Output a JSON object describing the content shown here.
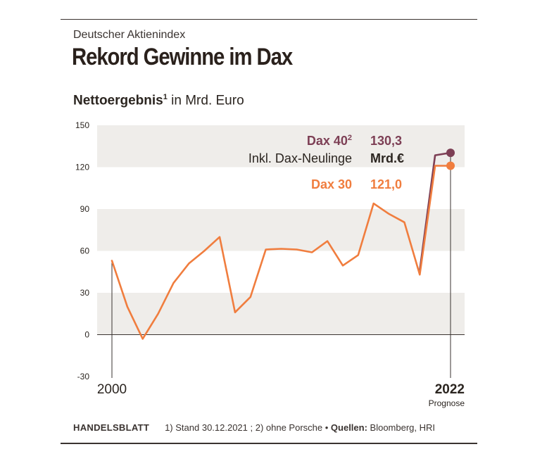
{
  "header": {
    "kicker": "Deutscher Aktienindex",
    "title": "Rekord Gewinne im Dax",
    "subtitle_bold": "Nettoergebnis",
    "subtitle_sup": "1",
    "subtitle_rest": " in Mrd. Euro"
  },
  "legend": {
    "dax40_label": "Dax 40",
    "dax40_sup": "2",
    "dax40_value": "130,3",
    "dax40_sub_label": "Inkl. Dax-Neulinge",
    "dax40_unit": "Mrd.€",
    "dax30_label": "Dax 30",
    "dax30_value": "121,0"
  },
  "footer": {
    "brand": "HANDELSBLATT",
    "notes": "1) Stand 30.12.2021 ;  2) ohne Porsche • ",
    "sources_label": "Quellen:",
    "sources": " Bloomberg, HRI"
  },
  "colors": {
    "dax30": "#f07d3e",
    "dax40": "#7d3f55",
    "band": "#efedea",
    "axis": "#3a3330",
    "text": "#2b2520"
  },
  "chart_data": {
    "type": "line",
    "ylabel": "",
    "xlabel": "",
    "ylim": [
      -30,
      150
    ],
    "yticks": [
      -30,
      0,
      30,
      60,
      90,
      120,
      150
    ],
    "x_labels": [
      {
        "x": 2000,
        "label": "2000",
        "bold": false,
        "sub": ""
      },
      {
        "x": 2022,
        "label": "2022",
        "bold": true,
        "sub": "Prognose"
      }
    ],
    "xlim": [
      2000,
      2022
    ],
    "series": [
      {
        "name": "Dax 30",
        "color": "#f07d3e",
        "x": [
          2000,
          2001,
          2002,
          2003,
          2004,
          2005,
          2006,
          2007,
          2008,
          2009,
          2010,
          2011,
          2012,
          2013,
          2014,
          2015,
          2016,
          2017,
          2018,
          2019,
          2020,
          2021,
          2022
        ],
        "values": [
          53,
          20,
          -3,
          15,
          37,
          51,
          60,
          70,
          16,
          27,
          61,
          61.5,
          61,
          59,
          67,
          49.5,
          57,
          94,
          86.5,
          80.5,
          43,
          121,
          121
        ]
      },
      {
        "name": "Dax 40",
        "color": "#7d3f55",
        "x": [
          2020,
          2021,
          2022
        ],
        "values": [
          46,
          128.5,
          130.3
        ]
      }
    ]
  }
}
